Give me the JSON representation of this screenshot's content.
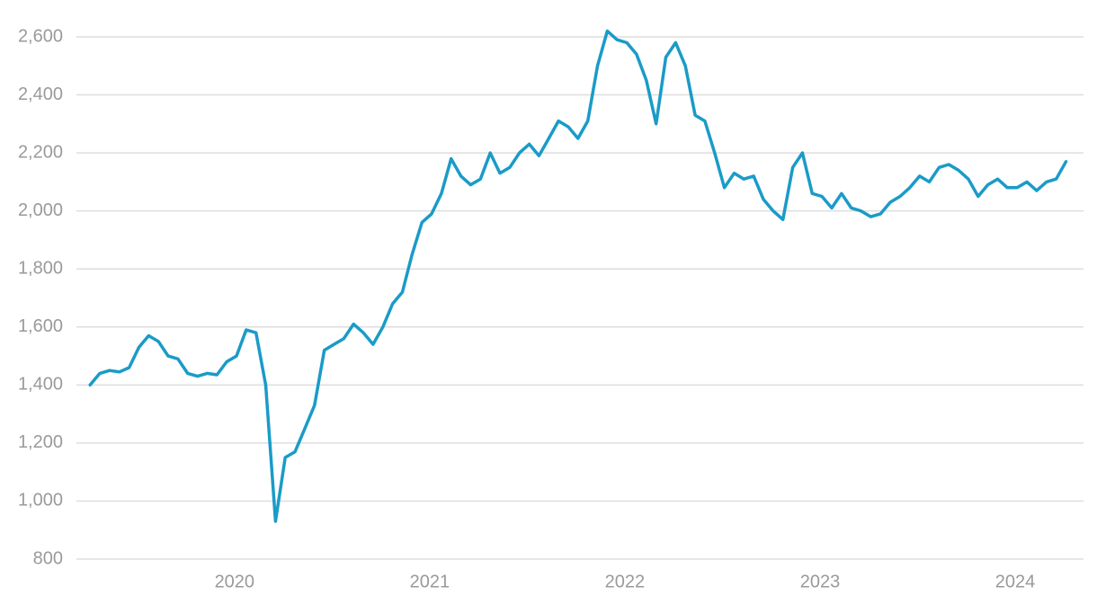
{
  "chart_data": {
    "type": "line",
    "color": "#1a9bc8",
    "grid": true,
    "x": [
      2019.26,
      2019.31,
      2019.36,
      2019.41,
      2019.46,
      2019.51,
      2019.56,
      2019.61,
      2019.66,
      2019.71,
      2019.76,
      2019.81,
      2019.86,
      2019.91,
      2019.96,
      2020.01,
      2020.06,
      2020.11,
      2020.16,
      2020.21,
      2020.26,
      2020.31,
      2020.36,
      2020.41,
      2020.46,
      2020.51,
      2020.56,
      2020.61,
      2020.66,
      2020.71,
      2020.76,
      2020.81,
      2020.86,
      2020.91,
      2020.96,
      2021.01,
      2021.06,
      2021.11,
      2021.16,
      2021.21,
      2021.26,
      2021.31,
      2021.36,
      2021.41,
      2021.46,
      2021.51,
      2021.56,
      2021.61,
      2021.66,
      2021.71,
      2021.76,
      2021.81,
      2021.86,
      2021.91,
      2021.96,
      2022.01,
      2022.06,
      2022.11,
      2022.16,
      2022.21,
      2022.26,
      2022.31,
      2022.36,
      2022.41,
      2022.46,
      2022.51,
      2022.56,
      2022.61,
      2022.66,
      2022.71,
      2022.76,
      2022.81,
      2022.86,
      2022.91,
      2022.96,
      2023.01,
      2023.06,
      2023.11,
      2023.16,
      2023.21,
      2023.26,
      2023.31,
      2023.36,
      2023.41,
      2023.46,
      2023.51,
      2023.56,
      2023.61,
      2023.66,
      2023.71,
      2023.76,
      2023.81,
      2023.86,
      2023.91,
      2023.96,
      2024.01,
      2024.06,
      2024.11,
      2024.16,
      2024.21,
      2024.26
    ],
    "values": [
      1400,
      1440,
      1450,
      1445,
      1460,
      1530,
      1570,
      1550,
      1500,
      1490,
      1440,
      1430,
      1440,
      1435,
      1480,
      1500,
      1590,
      1580,
      1400,
      930,
      1150,
      1170,
      1250,
      1330,
      1520,
      1540,
      1560,
      1610,
      1580,
      1540,
      1600,
      1680,
      1720,
      1850,
      1960,
      1990,
      2060,
      2180,
      2120,
      2090,
      2110,
      2200,
      2130,
      2150,
      2200,
      2230,
      2190,
      2250,
      2310,
      2290,
      2250,
      2310,
      2500,
      2620,
      2590,
      2580,
      2540,
      2450,
      2300,
      2530,
      2580,
      2500,
      2330,
      2310,
      2200,
      2080,
      2130,
      2110,
      2120,
      2040,
      2000,
      1970,
      2150,
      2200,
      2060,
      2050,
      2010,
      2060,
      2010,
      2000,
      1980,
      1990,
      2030,
      2050,
      2080,
      2120,
      2100,
      2150,
      2160,
      2140,
      2110,
      2050,
      2090,
      2110,
      2080,
      2080,
      2100,
      2070,
      2100,
      2110,
      2170
    ],
    "xlim": [
      2019.19,
      2024.35
    ],
    "xticks": [
      2020,
      2021,
      2022,
      2023,
      2024
    ],
    "ylim": [
      800,
      2600
    ],
    "yticks": [
      {
        "value": 800,
        "label": "800"
      },
      {
        "value": 1000,
        "label": "1,000"
      },
      {
        "value": 1200,
        "label": "1,200"
      },
      {
        "value": 1400,
        "label": "1,400"
      },
      {
        "value": 1600,
        "label": "1,600"
      },
      {
        "value": 1800,
        "label": "1,800"
      },
      {
        "value": 2000,
        "label": "2,000"
      },
      {
        "value": 2200,
        "label": "2,200"
      },
      {
        "value": 2400,
        "label": "2,400"
      },
      {
        "value": 2600,
        "label": "2,600"
      }
    ]
  }
}
